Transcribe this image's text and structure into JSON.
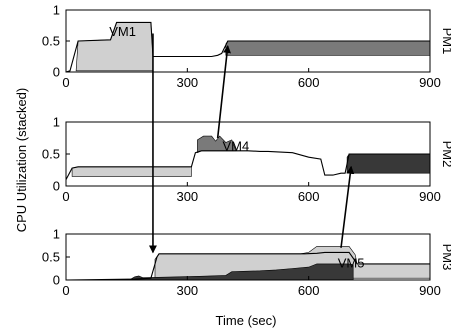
{
  "chart_data": {
    "type": "area",
    "ylabel": "CPU Utilization (stacked)",
    "xlabel": "Time (sec)",
    "xlim": [
      0,
      900
    ],
    "ylim": [
      0,
      1
    ],
    "xticks": [
      0,
      300,
      600,
      900
    ],
    "yticks": [
      "0",
      "0.5",
      "1"
    ],
    "colors": {
      "light": "#d0d0d0",
      "mid": "#7a7a7a",
      "dark": "#383838",
      "line": "#000000",
      "frame": "#000000"
    },
    "panels": [
      {
        "label": "PM1",
        "line": [
          [
            0,
            0
          ],
          [
            10,
            0.02
          ],
          [
            30,
            0.5
          ],
          [
            110,
            0.52
          ],
          [
            125,
            0.8
          ],
          [
            210,
            0.8
          ],
          [
            215,
            0.25
          ],
          [
            300,
            0.25
          ],
          [
            360,
            0.25
          ],
          [
            375,
            0.27
          ],
          [
            385,
            0.3
          ],
          [
            400,
            0.5
          ],
          [
            900,
            0.5
          ]
        ],
        "bands": [
          {
            "color": "light",
            "top": [
              [
                25,
                0.02
              ],
              [
                30,
                0.5
              ],
              [
                110,
                0.52
              ],
              [
                125,
                0.8
              ],
              [
                210,
                0.8
              ],
              [
                215,
                0.25
              ]
            ],
            "bottom": [
              [
                25,
                0.02
              ],
              [
                215,
                0.02
              ]
            ]
          },
          {
            "color": "mid",
            "top": [
              [
                395,
                0.45
              ],
              [
                400,
                0.5
              ],
              [
                900,
                0.5
              ]
            ],
            "bottom": [
              [
                395,
                0.27
              ],
              [
                900,
                0.27
              ]
            ]
          }
        ],
        "annotations": [
          {
            "text": "VM1",
            "x": 140,
            "y": 0.66
          }
        ]
      },
      {
        "label": "PM2",
        "line": [
          [
            0,
            0.1
          ],
          [
            15,
            0.28
          ],
          [
            30,
            0.3
          ],
          [
            310,
            0.3
          ],
          [
            320,
            0.52
          ],
          [
            335,
            0.55
          ],
          [
            400,
            0.55
          ],
          [
            450,
            0.55
          ],
          [
            480,
            0.54
          ],
          [
            500,
            0.54
          ],
          [
            560,
            0.52
          ],
          [
            600,
            0.45
          ],
          [
            630,
            0.42
          ],
          [
            640,
            0.17
          ],
          [
            660,
            0.17
          ],
          [
            680,
            0.2
          ],
          [
            690,
            0.2
          ],
          [
            700,
            0.5
          ],
          [
            900,
            0.5
          ]
        ],
        "bands": [
          {
            "color": "light",
            "top": [
              [
                15,
                0.28
              ],
              [
                30,
                0.3
              ],
              [
                310,
                0.3
              ]
            ],
            "bottom": [
              [
                15,
                0.15
              ],
              [
                310,
                0.15
              ]
            ]
          },
          {
            "color": "mid",
            "top": [
              [
                325,
                0.72
              ],
              [
                340,
                0.78
              ],
              [
                360,
                0.78
              ],
              [
                370,
                0.7
              ],
              [
                380,
                0.78
              ],
              [
                395,
                0.68
              ],
              [
                410,
                0.72
              ],
              [
                420,
                0.55
              ]
            ],
            "bottom": [
              [
                325,
                0.52
              ],
              [
                335,
                0.55
              ],
              [
                420,
                0.55
              ]
            ]
          },
          {
            "color": "dark",
            "top": [
              [
                695,
                0.45
              ],
              [
                700,
                0.5
              ],
              [
                900,
                0.5
              ]
            ],
            "bottom": [
              [
                695,
                0.2
              ],
              [
                900,
                0.2
              ]
            ]
          }
        ],
        "annotations": [
          {
            "text": "VM4",
            "x": 420,
            "y": 0.63
          }
        ]
      },
      {
        "label": "PM3",
        "line": [
          [
            0,
            0
          ],
          [
            170,
            0.02
          ],
          [
            210,
            0.04
          ],
          [
            225,
            0.5
          ],
          [
            230,
            0.57
          ],
          [
            400,
            0.57
          ],
          [
            500,
            0.57
          ],
          [
            590,
            0.57
          ],
          [
            620,
            0.58
          ],
          [
            640,
            0.6
          ],
          [
            700,
            0.6
          ],
          [
            720,
            0.35
          ],
          [
            900,
            0.35
          ]
        ],
        "bands": [
          {
            "color": "light",
            "top": [
              [
                220,
                0.45
              ],
              [
                230,
                0.57
              ],
              [
                580,
                0.57
              ],
              [
                600,
                0.6
              ],
              [
                620,
                0.73
              ],
              [
                700,
                0.73
              ],
              [
                715,
                0.55
              ],
              [
                720,
                0.35
              ],
              [
                900,
                0.35
              ]
            ],
            "bottom": [
              [
                220,
                0.04
              ],
              [
                410,
                0.04
              ],
              [
                720,
                0.04
              ],
              [
                900,
                0.04
              ]
            ]
          },
          {
            "color": "dark",
            "top": [
              [
                160,
                0.02
              ],
              [
                170,
                0.07
              ],
              [
                180,
                0.09
              ],
              [
                190,
                0.05
              ],
              [
                330,
                0.08
              ],
              [
                395,
                0.1
              ],
              [
                410,
                0.18
              ],
              [
                480,
                0.2
              ],
              [
                520,
                0.22
              ],
              [
                560,
                0.25
              ],
              [
                600,
                0.28
              ],
              [
                620,
                0.35
              ],
              [
                700,
                0.35
              ],
              [
                710,
                0.33
              ]
            ],
            "bottom": [
              [
                160,
                0.0
              ],
              [
                710,
                0.0
              ]
            ]
          }
        ],
        "annotations": [
          {
            "text": "VM5",
            "x": 705,
            "y": 0.38
          }
        ]
      }
    ],
    "arrows": [
      {
        "from_panel": 0,
        "from": [
          215,
          0.62
        ],
        "to_panel": 2,
        "to": [
          215,
          0.6
        ]
      },
      {
        "from_panel": 1,
        "from": [
          375,
          0.75
        ],
        "to_panel": 0,
        "to": [
          400,
          0.42
        ]
      },
      {
        "from_panel": 2,
        "from": [
          680,
          0.7
        ],
        "to_panel": 1,
        "to": [
          705,
          0.3
        ]
      }
    ]
  }
}
